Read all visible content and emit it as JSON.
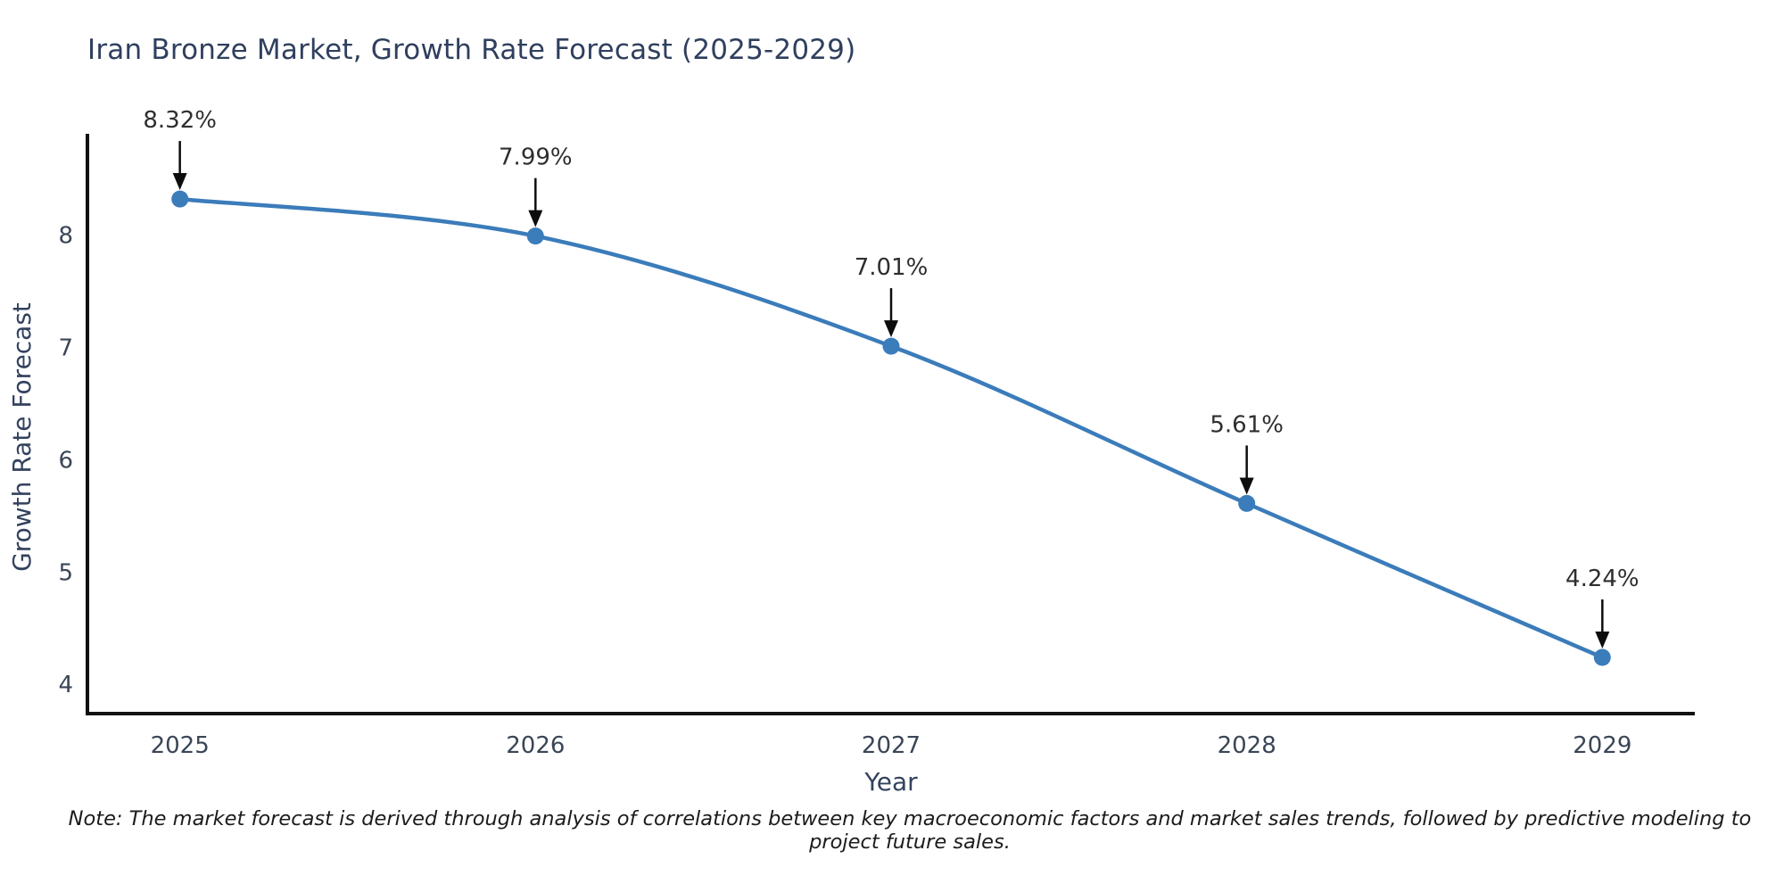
{
  "title": "Iran Bronze Market, Growth Rate Forecast (2025-2029)",
  "note": "Note: The market forecast is derived through analysis of correlations between key macroeconomic factors and market sales trends, followed by predictive modeling to project future sales.",
  "chart_data": {
    "type": "line",
    "title": "Iran Bronze Market, Growth Rate Forecast (2025-2029)",
    "x": [
      2025,
      2026,
      2027,
      2028,
      2029
    ],
    "categories": [
      "2025",
      "2026",
      "2027",
      "2028",
      "2029"
    ],
    "values": [
      8.32,
      7.99,
      7.01,
      5.61,
      4.24
    ],
    "point_labels": [
      "8.32%",
      "7.99%",
      "7.01%",
      "5.61%",
      "4.24%"
    ],
    "xlabel": "Year",
    "ylabel": "Growth Rate Forecast",
    "yticks": [
      4,
      5,
      6,
      7,
      8
    ],
    "xlim": [
      2024.74,
      2029.26
    ],
    "ylim": [
      3.74,
      8.9
    ],
    "grid": false,
    "legend": null,
    "line_shape": "spline",
    "line_color": "#3b7cba",
    "marker_color": "#3b7cba",
    "annotation_arrow_color": "#0d0d0d"
  },
  "colors": {
    "title": "#2f3f5e",
    "axis_label": "#33425e",
    "tick_label": "#3a4656",
    "annotation_text": "#2e2e2e",
    "spine": "#111111",
    "background": "#ffffff"
  }
}
